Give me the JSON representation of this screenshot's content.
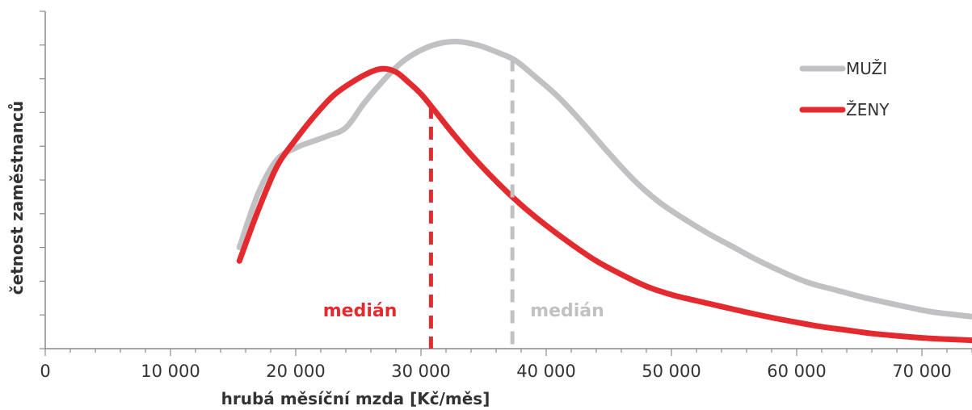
{
  "chart_data": {
    "type": "line",
    "xlabel": "hrubá měsíční mzda [Kč/měs]",
    "ylabel": "četnost zaměstnanců",
    "x_ticks": [
      "0",
      "10 000",
      "20 000",
      "30 000",
      "40 000",
      "50 000",
      "60 000",
      "70 000"
    ],
    "x_tick_values": [
      0,
      10000,
      20000,
      30000,
      40000,
      50000,
      60000,
      70000
    ],
    "xlim": [
      0,
      74000
    ],
    "ylim": [
      0,
      10
    ],
    "y_tick_labels_shown": false,
    "grid": false,
    "legend_position": "top-right",
    "series": [
      {
        "name": "MUŽI",
        "color": "#c1c1c4",
        "x": [
          15500,
          17000,
          18500,
          20000,
          21000,
          22500,
          24000,
          25500,
          27000,
          28500,
          30000,
          31500,
          33000,
          34500,
          36000,
          37500,
          39000,
          41000,
          43000,
          45000,
          47000,
          49000,
          51000,
          53000,
          55000,
          57000,
          59000,
          61000,
          63000,
          65000,
          67000,
          69000,
          71000,
          74000
        ],
        "y": [
          3.0,
          4.6,
          5.6,
          5.95,
          6.1,
          6.3,
          6.55,
          7.3,
          7.95,
          8.5,
          8.85,
          9.05,
          9.1,
          9.0,
          8.8,
          8.55,
          8.1,
          7.45,
          6.65,
          5.8,
          5.0,
          4.35,
          3.85,
          3.4,
          3.0,
          2.6,
          2.25,
          1.95,
          1.75,
          1.55,
          1.38,
          1.22,
          1.08,
          0.95
        ]
      },
      {
        "name": "ŽENY",
        "color": "#e32b2f",
        "x": [
          15500,
          17000,
          18500,
          20000,
          21500,
          23000,
          24500,
          26000,
          27000,
          28000,
          29000,
          30000,
          31000,
          32500,
          34000,
          35500,
          37000,
          38500,
          40000,
          42000,
          44000,
          46000,
          48000,
          50000,
          52000,
          54000,
          56000,
          58000,
          60000,
          62000,
          64000,
          66000,
          68000,
          70000,
          72000,
          74000
        ],
        "y": [
          2.6,
          4.1,
          5.4,
          6.2,
          6.9,
          7.5,
          7.9,
          8.2,
          8.3,
          8.2,
          7.9,
          7.55,
          7.1,
          6.4,
          5.75,
          5.15,
          4.6,
          4.1,
          3.65,
          3.1,
          2.6,
          2.2,
          1.85,
          1.6,
          1.42,
          1.25,
          1.08,
          0.92,
          0.78,
          0.65,
          0.55,
          0.45,
          0.38,
          0.32,
          0.28,
          0.25
        ]
      }
    ],
    "annotations": [
      {
        "label": "medián",
        "x": 30800,
        "series": "ŽENY",
        "color": "#e32b2f",
        "line_top": 7.2
      },
      {
        "label": "medián",
        "x": 37300,
        "series": "MUŽI",
        "color": "#c1c1c4",
        "line_top": 8.6
      }
    ]
  }
}
